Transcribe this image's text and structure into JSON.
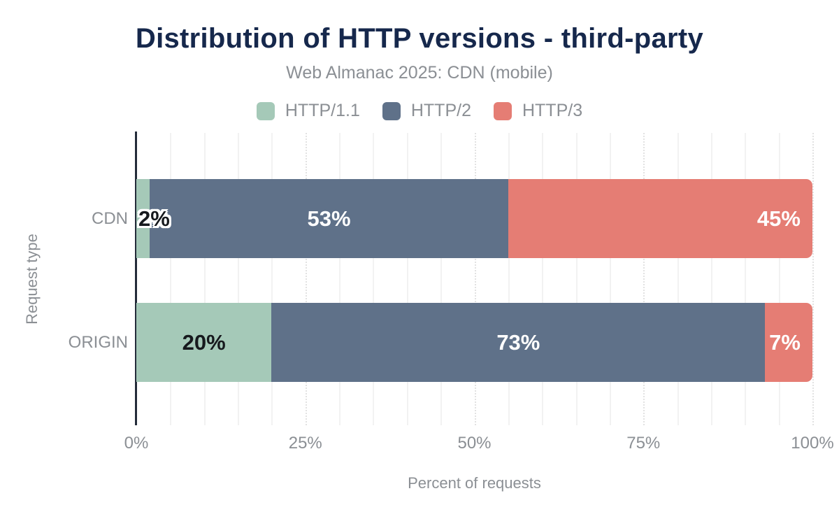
{
  "chart_data": {
    "type": "bar",
    "orientation": "horizontal",
    "stacked": true,
    "title": "Distribution of HTTP versions - third-party",
    "subtitle": "Web Almanac 2025: CDN (mobile)",
    "categories": [
      "CDN",
      "ORIGIN"
    ],
    "series": [
      {
        "name": "HTTP/1.1",
        "color": "#a5c9b8",
        "values": [
          2,
          20
        ],
        "labels": [
          "2%",
          "20%"
        ]
      },
      {
        "name": "HTTP/2",
        "color": "#5f7189",
        "values": [
          53,
          73
        ],
        "labels": [
          "53%",
          "73%"
        ]
      },
      {
        "name": "HTTP/3",
        "color": "#e57d74",
        "values": [
          45,
          7
        ],
        "labels": [
          "45%",
          "7%"
        ]
      }
    ],
    "xlabel": "Percent of requests",
    "ylabel": "Request type",
    "xlim": [
      0,
      100
    ],
    "xticks": [
      {
        "value": 0,
        "label": "0%"
      },
      {
        "value": 25,
        "label": "25%"
      },
      {
        "value": 50,
        "label": "50%"
      },
      {
        "value": 75,
        "label": "75%"
      },
      {
        "value": 100,
        "label": "100%"
      }
    ],
    "grid": {
      "on": true,
      "minor_step": 5,
      "major_step": 25
    },
    "legend_position": "top"
  },
  "colors": {
    "background": "#ffffff",
    "title": "#16284c",
    "muted_text": "#8b8f94",
    "axis_line": "#242c3a",
    "gridline_minor": "#f2f2f2",
    "gridline_major": "#e2e2e2",
    "annotation_dark": "#16191d",
    "annotation_light": "#ffffff"
  }
}
